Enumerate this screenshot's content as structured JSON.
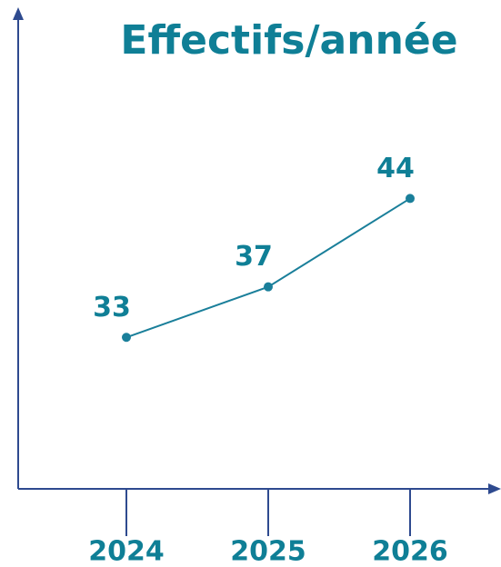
{
  "chart_data": {
    "type": "line",
    "title": "Effectifs/année",
    "categories": [
      "2024",
      "2025",
      "2026"
    ],
    "values": [
      33,
      37,
      44
    ],
    "color": "#1a7f9a",
    "ylim": [
      21,
      59
    ]
  }
}
